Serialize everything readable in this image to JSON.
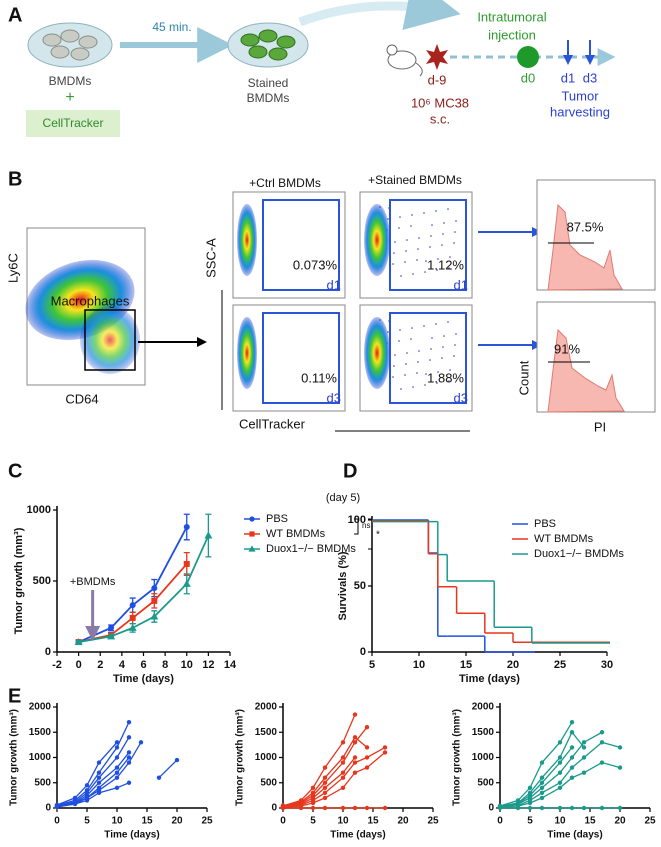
{
  "panel_a": {
    "label": "A",
    "arrow_label": "45 min.",
    "dish1": "BMDMs",
    "plus": "+",
    "reagent": "CellTracker",
    "dish2": [
      "Stained",
      "BMDMs"
    ],
    "injection": [
      "Intratumoral",
      "injection"
    ],
    "days": [
      "d-9",
      "d0",
      "d1",
      "d3"
    ],
    "tumor": [
      "10⁶ MC38",
      "s.c."
    ],
    "harvest": [
      "Tumor",
      "harvesting"
    ]
  },
  "panel_b": {
    "label": "B",
    "overview": {
      "y_label": "Ly6C",
      "x_label": "CD64",
      "gate": "Macrophages"
    },
    "columns": [
      "+Ctrl BMDMs",
      "+Stained BMDMs"
    ],
    "y_label": "SSC-A",
    "x_label": "CellTracker",
    "rows": [
      {
        "gates": [
          "0.073%",
          "1.12%"
        ],
        "day": "d1"
      },
      {
        "gates": [
          "0.11%",
          "1.88%"
        ],
        "day": "d3"
      }
    ],
    "histograms": {
      "percents": [
        "87.5%",
        "91%"
      ],
      "y_label": "Count",
      "x_label": "PI"
    }
  },
  "chart_data": [
    {
      "type": "line",
      "panel": "C",
      "x_label": "Time (days)",
      "y_label": "Tumor growth (mm³)",
      "x": [
        0,
        3,
        5,
        7,
        10,
        12
      ],
      "xlim": [
        -2,
        14
      ],
      "xticks": [
        -2,
        0,
        2,
        4,
        6,
        8,
        10,
        12,
        14
      ],
      "ylim": [
        0,
        1000
      ],
      "yticks": [
        0,
        500,
        1000
      ],
      "legend": "outside-right",
      "annotations": {
        "day": "(day 5)",
        "ns": "ns",
        "star": "*",
        "treatment": "+BMDMs"
      },
      "series": [
        {
          "name": "PBS",
          "color": "#1f4fe0",
          "marker": "circle",
          "values": [
            70,
            170,
            330,
            450,
            880,
            null
          ],
          "errors": [
            10,
            20,
            50,
            60,
            90,
            null
          ]
        },
        {
          "name": "WT BMDMs",
          "color": "#e8361c",
          "marker": "square",
          "values": [
            70,
            120,
            240,
            360,
            620,
            null
          ],
          "errors": [
            10,
            15,
            40,
            50,
            80,
            null
          ]
        },
        {
          "name": "Duox1−/− BMDMs",
          "color": "#1a9a8c",
          "marker": "triangle",
          "values": [
            70,
            110,
            170,
            250,
            480,
            820
          ],
          "errors": [
            10,
            15,
            30,
            40,
            70,
            150
          ]
        }
      ]
    },
    {
      "type": "step",
      "panel": "D",
      "x_label": "Time (days)",
      "y_label": "Survivals (%)",
      "xlim": [
        5,
        30
      ],
      "xticks": [
        5,
        10,
        15,
        20,
        25,
        30
      ],
      "ylim": [
        0,
        100
      ],
      "yticks": [
        0,
        50,
        100
      ],
      "legend": "upper-right",
      "series": [
        {
          "name": "PBS",
          "color": "#1f4fe0",
          "x": [
            5,
            11,
            12,
            13,
            17,
            22
          ],
          "values": [
            100,
            75,
            12,
            12,
            0,
            0
          ]
        },
        {
          "name": "WT BMDMs",
          "color": "#e8361c",
          "x": [
            5,
            11,
            12,
            14,
            17,
            20,
            30
          ],
          "values": [
            100,
            75,
            50,
            30,
            15,
            8,
            8
          ]
        },
        {
          "name": "Duox1−/− BMDMs",
          "color": "#1a9a8c",
          "x": [
            5,
            12,
            13,
            15,
            18,
            22,
            30
          ],
          "values": [
            100,
            75,
            55,
            55,
            20,
            8,
            8
          ]
        }
      ]
    },
    {
      "type": "line",
      "panel": "E",
      "x_label": "Time (days)",
      "y_label": "Tumor growth (mm³)",
      "x": [
        0,
        3,
        5,
        7,
        10,
        12,
        14,
        17,
        20
      ],
      "xlim": [
        0,
        25
      ],
      "xticks": [
        0,
        5,
        10,
        15,
        20,
        25
      ],
      "ylim": [
        0,
        2000
      ],
      "yticks": [
        0,
        500,
        1000,
        1500,
        2000
      ],
      "series": [
        {
          "color": "#1f4fe0",
          "marker": "circle",
          "values": [
            50,
            150,
            350,
            700,
            1200,
            1700,
            null,
            null,
            null
          ]
        },
        {
          "color": "#1f4fe0",
          "marker": "circle",
          "values": [
            40,
            120,
            300,
            600,
            1000,
            1400,
            null,
            null,
            null
          ]
        },
        {
          "color": "#1f4fe0",
          "marker": "circle",
          "values": [
            30,
            100,
            250,
            500,
            800,
            1100,
            null,
            null,
            null
          ]
        },
        {
          "color": "#1f4fe0",
          "marker": "circle",
          "values": [
            60,
            200,
            450,
            900,
            1300,
            null,
            null,
            null,
            null
          ]
        },
        {
          "color": "#1f4fe0",
          "marker": "circle",
          "values": [
            20,
            80,
            200,
            400,
            700,
            1000,
            null,
            null,
            null
          ]
        },
        {
          "color": "#1f4fe0",
          "marker": "circle",
          "values": [
            30,
            80,
            150,
            300,
            400,
            500,
            null,
            600,
            950
          ]
        },
        {
          "color": "#1f4fe0",
          "marker": "circle",
          "values": [
            50,
            100,
            200,
            350,
            600,
            900,
            1300,
            null,
            null
          ]
        }
      ]
    },
    {
      "type": "line",
      "x_label": "Time (days)",
      "y_label": "Tumor growth (mm³)",
      "x": [
        0,
        3,
        5,
        7,
        10,
        12,
        14,
        17,
        20
      ],
      "xlim": [
        0,
        25
      ],
      "xticks": [
        0,
        5,
        10,
        15,
        20,
        25
      ],
      "ylim": [
        0,
        2000
      ],
      "yticks": [
        0,
        500,
        1000,
        1500,
        2000
      ],
      "series": [
        {
          "color": "#e8361c",
          "marker": "circle",
          "values": [
            40,
            150,
            400,
            800,
            1300,
            1850,
            null,
            null,
            null
          ]
        },
        {
          "color": "#e8361c",
          "marker": "circle",
          "values": [
            30,
            120,
            300,
            600,
            1000,
            1400,
            1200,
            null,
            null
          ]
        },
        {
          "color": "#e8361c",
          "marker": "circle",
          "values": [
            50,
            100,
            250,
            500,
            900,
            1300,
            1600,
            null,
            null
          ]
        },
        {
          "color": "#e8361c",
          "marker": "circle",
          "values": [
            20,
            60,
            150,
            300,
            600,
            900,
            1000,
            1200,
            null
          ]
        },
        {
          "color": "#e8361c",
          "marker": "circle",
          "values": [
            10,
            40,
            100,
            200,
            400,
            700,
            800,
            1100,
            null
          ]
        },
        {
          "color": "#e8361c",
          "marker": "circle",
          "values": [
            0,
            0,
            0,
            0,
            0,
            0,
            0,
            0,
            null
          ]
        },
        {
          "color": "#e8361c",
          "marker": "circle",
          "values": [
            30,
            80,
            200,
            400,
            700,
            1000,
            null,
            null,
            null
          ]
        }
      ]
    },
    {
      "type": "line",
      "x_label": "Time (days)",
      "y_label": "Tumor growth (mm³)",
      "x": [
        0,
        3,
        5,
        7,
        10,
        12,
        14,
        17,
        20
      ],
      "xlim": [
        0,
        25
      ],
      "xticks": [
        0,
        5,
        10,
        15,
        20,
        25
      ],
      "ylim": [
        0,
        2000
      ],
      "yticks": [
        0,
        500,
        1000,
        1500,
        2000
      ],
      "series": [
        {
          "color": "#1a9a8c",
          "marker": "circle",
          "values": [
            40,
            150,
            400,
            900,
            1300,
            1700,
            null,
            null,
            null
          ]
        },
        {
          "color": "#1a9a8c",
          "marker": "circle",
          "values": [
            30,
            100,
            300,
            600,
            1000,
            1500,
            1200,
            null,
            null
          ]
        },
        {
          "color": "#1a9a8c",
          "marker": "circle",
          "values": [
            20,
            80,
            200,
            400,
            700,
            1000,
            1300,
            1500,
            null
          ]
        },
        {
          "color": "#1a9a8c",
          "marker": "circle",
          "values": [
            10,
            50,
            150,
            300,
            500,
            800,
            1000,
            1300,
            1200
          ]
        },
        {
          "color": "#1a9a8c",
          "marker": "circle",
          "values": [
            20,
            40,
            100,
            200,
            400,
            600,
            700,
            900,
            800
          ]
        },
        {
          "color": "#1a9a8c",
          "marker": "circle",
          "values": [
            0,
            0,
            0,
            0,
            0,
            0,
            0,
            0,
            0
          ]
        },
        {
          "color": "#1a9a8c",
          "marker": "circle",
          "values": [
            30,
            90,
            250,
            500,
            900,
            1200,
            null,
            null,
            null
          ]
        }
      ]
    }
  ]
}
